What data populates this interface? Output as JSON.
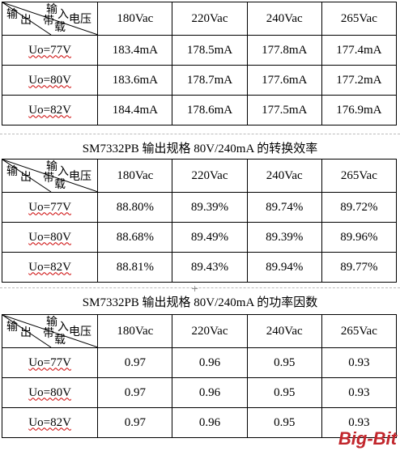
{
  "header": {
    "corner_in": [
      "输",
      "入"
    ],
    "corner_load": [
      "带",
      "载"
    ],
    "corner_out": [
      "输",
      "出"
    ],
    "corner_voltage": "电压",
    "columns": [
      "180Vac",
      "220Vac",
      "240Vac",
      "265Vac"
    ]
  },
  "rows": [
    "Uo=77V",
    "Uo=80V",
    "Uo=82V"
  ],
  "table1": {
    "values": [
      [
        "183.4mA",
        "178.5mA",
        "177.8mA",
        "177.4mA"
      ],
      [
        "183.6mA",
        "178.7mA",
        "177.6mA",
        "177.2mA"
      ],
      [
        "184.4mA",
        "178.6mA",
        "177.5mA",
        "176.9mA"
      ]
    ]
  },
  "caption2": "SM7332PB 输出规格 80V/240mA 的转换效率",
  "table2": {
    "values": [
      [
        "88.80%",
        "89.39%",
        "89.74%",
        "89.72%"
      ],
      [
        "88.68%",
        "89.49%",
        "89.39%",
        "89.96%"
      ],
      [
        "88.81%",
        "89.43%",
        "89.94%",
        "89.77%"
      ]
    ]
  },
  "caption3": "SM7332PB 输出规格 80V/240mA 的功率因数",
  "table3": {
    "values": [
      [
        "0.97",
        "0.96",
        "0.95",
        "0.93"
      ],
      [
        "0.97",
        "0.96",
        "0.95",
        "0.93"
      ],
      [
        "0.97",
        "0.96",
        "0.95",
        "0.93"
      ]
    ]
  },
  "watermark": "Big-Bit"
}
